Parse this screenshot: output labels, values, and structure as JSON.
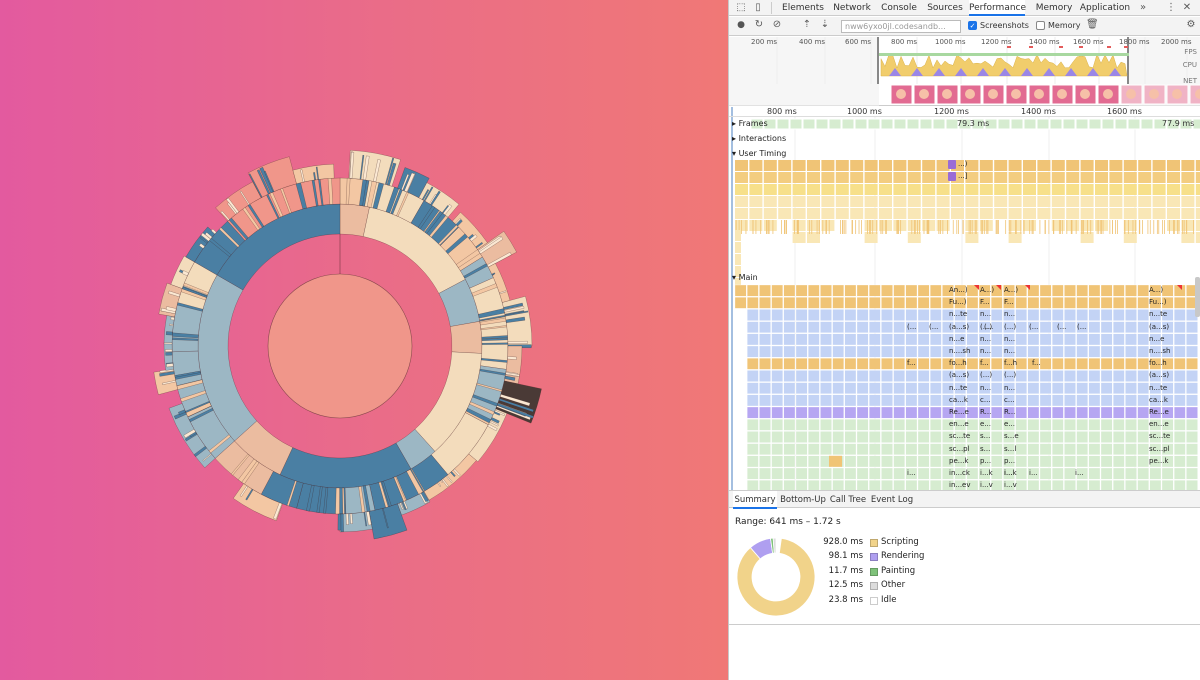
{
  "devtools": {
    "tabs": [
      "Elements",
      "Network",
      "Console",
      "Sources",
      "Performance",
      "Memory",
      "Application"
    ],
    "active_tab": "Performance",
    "more_tabs": "»",
    "toolbar": {
      "url": "nww6yxo0jl.codesandb...",
      "screenshots_label": "Screenshots",
      "screenshots_checked": true,
      "memory_label": "Memory",
      "memory_checked": false
    },
    "overview": {
      "ticks": [
        "200 ms",
        "400 ms",
        "600 ms",
        "800 ms",
        "1000 ms",
        "1200 ms",
        "1400 ms",
        "1600 ms",
        "1800 ms",
        "2000 ms"
      ],
      "row_labels": [
        "FPS",
        "CPU",
        "NET"
      ]
    },
    "flame": {
      "ruler": [
        "800 ms",
        "1000 ms",
        "1200 ms",
        "1400 ms",
        "1600 ms"
      ],
      "tracks": {
        "frames": "Frames",
        "interactions": "Interactions",
        "user_timing": "User Timing",
        "main": "Main"
      },
      "frame_durations": [
        "79.3 ms",
        "77.9 ms"
      ],
      "user_timing_labels": [
        "...)",
        "...]"
      ],
      "stack_a": [
        "An...)",
        "Fu...)",
        "n...te",
        "(a...s)",
        "n...e",
        "n....sh",
        "fo...h",
        "(a...s)",
        "n...te",
        "ca...k",
        "Re...e",
        "en...e",
        "sc...te",
        "sc...pl",
        "pe...k",
        "in...ck",
        "in...ev"
      ],
      "stack_b": [
        "A...)",
        "F...",
        "n...",
        "(...)",
        "n...",
        "n...",
        "f...",
        "(...)",
        "n...",
        "c...",
        "R...",
        "e...",
        "s...",
        "s...",
        "p...",
        "i...k",
        "i...v"
      ],
      "stack_c": [
        "A...)",
        "F...",
        "n...",
        "(...)",
        "n...",
        "n...",
        "f...h",
        "(...)",
        "n...",
        "c...",
        "R...",
        "e...",
        "s...e",
        "s...l",
        "p...",
        "i...k",
        "i...v"
      ],
      "stack_right": [
        "A...)",
        "Fu...)",
        "n...te",
        "(a...s)",
        "n...e",
        "n....sh",
        "fo...h",
        "(a...s)",
        "n...te",
        "ca...k",
        "Re...e",
        "en...e",
        "sc...te",
        "sc...pl",
        "pe...k"
      ],
      "misc_labels": [
        "(...",
        "(...",
        "f...",
        "(...",
        "(...",
        "(...",
        "f...",
        "(...",
        "i...",
        "i...",
        "i...",
        "i..."
      ]
    },
    "bottom_tabs": [
      "Summary",
      "Bottom-Up",
      "Call Tree",
      "Event Log"
    ],
    "active_bottom_tab": "Summary",
    "summary": {
      "range": "Range: 641 ms – 1.72 s",
      "items": [
        {
          "value": "928.0 ms",
          "label": "Scripting",
          "color": "#f1d38a"
        },
        {
          "value": "98.1 ms",
          "label": "Rendering",
          "color": "#af9ff0"
        },
        {
          "value": "11.7 ms",
          "label": "Painting",
          "color": "#7fc27a"
        },
        {
          "value": "12.5 ms",
          "label": "Other",
          "color": "#dcdcdc"
        },
        {
          "value": "23.8 ms",
          "label": "Idle",
          "color": "#ffffff"
        }
      ]
    }
  },
  "colors": {
    "sunburst_salmon": "#f0968a",
    "sunburst_steel": "#4a7fa3",
    "sunburst_lightsteel": "#9cb7c4",
    "sunburst_tan": "#ebbca0",
    "sunburst_cream": "#f3dcbc",
    "scripting": "#f1d38a",
    "rendering": "#af9ff0",
    "painting": "#7fc27a",
    "frames": "#d6ecd0"
  }
}
